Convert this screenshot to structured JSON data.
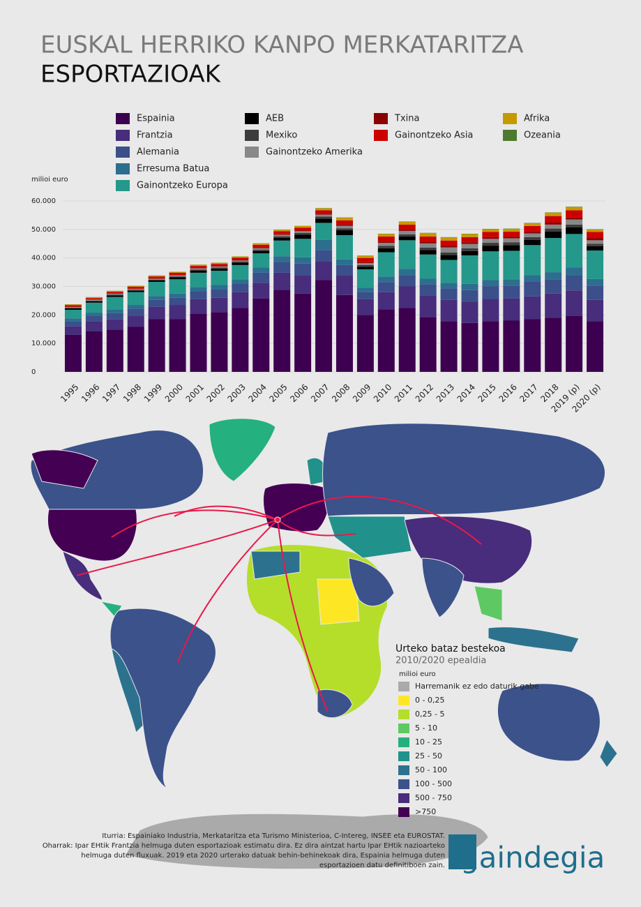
{
  "chart_data": {
    "type": "bar",
    "stacked": true,
    "title": "EUSKAL HERRIKO KANPO MERKATARITZA",
    "subtitle": "ESPORTAZIOAK",
    "y_label": "milioi euro",
    "categories": [
      "1995",
      "1996",
      "1997",
      "1998",
      "1999",
      "2000",
      "2001",
      "2002",
      "2003",
      "2004",
      "2005",
      "2006",
      "2007",
      "2008",
      "2009",
      "2010",
      "2011",
      "2012",
      "2013",
      "2014",
      "2015",
      "2016",
      "2017",
      "2018",
      "2019 (p)",
      "2020 (p)"
    ],
    "ylim": [
      0,
      60000
    ],
    "yticks": [
      0,
      {
        "value": 10000,
        "label": "10.000"
      },
      {
        "value": 20000,
        "label": "20.000"
      },
      {
        "value": 30000,
        "label": "30.000"
      },
      {
        "value": 40000,
        "label": "40.000"
      },
      {
        "value": 50000,
        "label": "50.000"
      },
      {
        "value": 60000,
        "label": "60.000"
      }
    ],
    "grid": true,
    "series": [
      {
        "name": "Espainia",
        "color": "#3d0050",
        "values": [
          13000,
          14300,
          14800,
          15800,
          18500,
          18500,
          20500,
          21000,
          22500,
          25800,
          28800,
          27500,
          32300,
          27000,
          20000,
          22000,
          22500,
          19200,
          17800,
          17200,
          17800,
          18000,
          18500,
          19000,
          19600,
          17800
        ]
      },
      {
        "name": "Frantzia",
        "color": "#472d7b",
        "values": [
          3000,
          3500,
          3600,
          4000,
          4300,
          5000,
          5000,
          5000,
          5500,
          5500,
          6000,
          6500,
          6500,
          7000,
          5500,
          6000,
          7500,
          7500,
          7500,
          7500,
          7800,
          7800,
          8000,
          8500,
          9000,
          7500
        ]
      },
      {
        "name": "Alemania",
        "color": "#3b4f8a",
        "values": [
          1800,
          2000,
          2200,
          2400,
          2500,
          2500,
          2800,
          3000,
          3000,
          3500,
          3800,
          4000,
          4000,
          3500,
          2500,
          3500,
          4000,
          4000,
          4000,
          4000,
          4500,
          4500,
          5200,
          5000,
          5300,
          5000
        ]
      },
      {
        "name": "Erresuma Batua",
        "color": "#2c6e8e",
        "values": [
          1000,
          1000,
          1200,
          1300,
          1300,
          1500,
          1500,
          1500,
          1500,
          1800,
          2000,
          2200,
          3500,
          2000,
          1500,
          2000,
          2200,
          2000,
          2000,
          2200,
          2200,
          2200,
          2300,
          2500,
          2800,
          2300
        ]
      },
      {
        "name": "Gainontzeko Europa",
        "color": "#24988a",
        "values": [
          3000,
          3500,
          4500,
          4500,
          5000,
          5000,
          5000,
          5000,
          5000,
          5000,
          5500,
          6500,
          6000,
          8500,
          6500,
          8500,
          10000,
          8500,
          8000,
          10000,
          10000,
          10000,
          10500,
          12000,
          11700,
          10000
        ]
      },
      {
        "name": "AEB",
        "color": "#000000",
        "values": [
          500,
          500,
          500,
          500,
          500,
          700,
          700,
          700,
          800,
          800,
          1000,
          1500,
          1500,
          1700,
          900,
          1400,
          1300,
          1600,
          1700,
          1500,
          2000,
          2000,
          1800,
          2300,
          2300,
          1500
        ]
      },
      {
        "name": "Mexiko",
        "color": "#3c3c3c",
        "values": [
          200,
          200,
          300,
          300,
          300,
          300,
          400,
          400,
          400,
          500,
          500,
          600,
          700,
          700,
          600,
          800,
          800,
          800,
          900,
          1000,
          1000,
          1000,
          1000,
          1000,
          1000,
          900
        ]
      },
      {
        "name": "Gainontzeko Amerika",
        "color": "#888888",
        "values": [
          300,
          300,
          300,
          300,
          300,
          400,
          400,
          400,
          400,
          500,
          500,
          600,
          700,
          900,
          700,
          1100,
          1200,
          1500,
          1800,
          1500,
          1400,
          1400,
          1300,
          1400,
          1800,
          1200
        ]
      },
      {
        "name": "Txina",
        "color": "#8b0000",
        "values": [
          100,
          100,
          100,
          100,
          100,
          100,
          100,
          100,
          200,
          200,
          200,
          200,
          300,
          400,
          300,
          400,
          500,
          600,
          600,
          600,
          600,
          500,
          600,
          700,
          700,
          700
        ]
      },
      {
        "name": "Gainontzeko Asia",
        "color": "#cc0000",
        "values": [
          500,
          500,
          600,
          700,
          700,
          800,
          800,
          800,
          800,
          1000,
          1100,
          1000,
          1200,
          1500,
          1500,
          1800,
          1700,
          1800,
          1800,
          1800,
          1800,
          1800,
          2000,
          2300,
          2500,
          2200
        ]
      },
      {
        "name": "Afrika",
        "color": "#c49a00",
        "values": [
          300,
          300,
          300,
          300,
          300,
          300,
          400,
          400,
          400,
          500,
          500,
          600,
          700,
          900,
          800,
          900,
          1000,
          1200,
          1100,
          1100,
          1000,
          1000,
          1000,
          1200,
          1200,
          900
        ]
      },
      {
        "name": "Ozeania",
        "color": "#4e7a2e",
        "values": [
          50,
          50,
          50,
          50,
          50,
          50,
          50,
          50,
          50,
          50,
          50,
          50,
          100,
          100,
          50,
          100,
          100,
          100,
          100,
          100,
          100,
          100,
          100,
          100,
          100,
          100
        ]
      }
    ]
  },
  "map": {
    "legend_title": "Urteko bataz bestekoa",
    "legend_subtitle": "2010/2020 epealdia",
    "legend_unit": "milioi euro",
    "legend": [
      {
        "label": "Harremanik ez edo daturik gabe",
        "color": "#aaaaaa"
      },
      {
        "label": "0 - 0,25",
        "color": "#fde725"
      },
      {
        "label": "0,25 - 5",
        "color": "#b5de2b"
      },
      {
        "label": "5 - 10",
        "color": "#5ec962"
      },
      {
        "label": "10 - 25",
        "color": "#25b07f"
      },
      {
        "label": "25 - 50",
        "color": "#21918c"
      },
      {
        "label": "50 - 100",
        "color": "#2c728e"
      },
      {
        "label": "100 - 500",
        "color": "#3b528b"
      },
      {
        "label": "500 - 750",
        "color": "#472d7b"
      },
      {
        "label": ">750",
        "color": "#440154"
      }
    ]
  },
  "footer": {
    "lines": [
      "Iturria: Espainiako Industria, Merkataritza eta Turismo Ministerioa, C-Intereg, INSEE eta EUROSTAT.",
      "Oharrak: Ipar EHtik Frantzia helmuga duten esportazioak estimatu dira. Ez dira aintzat hartu Ipar EHtik nazioarteko",
      "helmuga duten fluxuak. 2019 eta 2020 urterako datuak behin-behinekoak dira, Espainia helmuga duten",
      "esportazioen datu definitiboen zain."
    ],
    "logo": "gaindegia"
  }
}
